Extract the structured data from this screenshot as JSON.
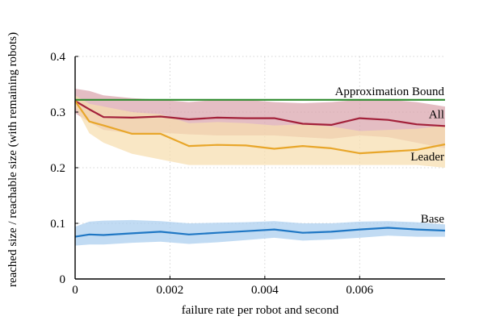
{
  "chart_data": {
    "type": "line",
    "xlabel": "failure rate per robot and second",
    "ylabel": "reached size / reachable size (with remaining robots)",
    "xlim": [
      0,
      0.0078
    ],
    "ylim": [
      0,
      0.4
    ],
    "grid": true,
    "x_ticks": [
      0,
      0.002,
      0.004,
      0.006
    ],
    "x_tick_labels": [
      "0",
      "0.002",
      "0.004",
      "0.006"
    ],
    "y_ticks": [
      0,
      0.1,
      0.2,
      0.3,
      0.4
    ],
    "y_tick_labels": [
      "0",
      "0.1",
      "0.2",
      "0.3",
      "0.4"
    ],
    "series": [
      {
        "name": "Approximation Bound",
        "color": "#2e8b2e",
        "x": [
          0,
          0.0078
        ],
        "values": [
          0.322,
          0.322
        ]
      },
      {
        "name": "All",
        "color": "#a3213a",
        "band_color": "#d9a3ac",
        "x": [
          0,
          0.0003,
          0.0006,
          0.0012,
          0.0018,
          0.0024,
          0.003,
          0.0036,
          0.0042,
          0.0048,
          0.0054,
          0.006,
          0.0066,
          0.0072,
          0.0078
        ],
        "values": [
          0.32,
          0.305,
          0.291,
          0.29,
          0.292,
          0.287,
          0.29,
          0.289,
          0.289,
          0.279,
          0.277,
          0.289,
          0.286,
          0.278,
          0.275
        ],
        "upper": [
          0.342,
          0.338,
          0.33,
          0.325,
          0.322,
          0.318,
          0.322,
          0.322,
          0.318,
          0.316,
          0.318,
          0.322,
          0.322,
          0.318,
          0.31
        ],
        "lower": [
          0.298,
          0.282,
          0.268,
          0.262,
          0.263,
          0.26,
          0.258,
          0.258,
          0.258,
          0.255,
          0.252,
          0.258,
          0.255,
          0.245,
          0.235
        ]
      },
      {
        "name": "Leader",
        "color": "#e8a62a",
        "band_color": "#f6deae",
        "x": [
          0,
          0.0003,
          0.0006,
          0.0012,
          0.0018,
          0.0024,
          0.003,
          0.0036,
          0.0042,
          0.0048,
          0.0054,
          0.006,
          0.0066,
          0.0072,
          0.0078
        ],
        "values": [
          0.32,
          0.283,
          0.276,
          0.261,
          0.261,
          0.239,
          0.241,
          0.24,
          0.234,
          0.239,
          0.235,
          0.226,
          0.229,
          0.232,
          0.242
        ],
        "upper": [
          0.33,
          0.315,
          0.31,
          0.3,
          0.296,
          0.28,
          0.282,
          0.28,
          0.276,
          0.278,
          0.274,
          0.266,
          0.268,
          0.27,
          0.276
        ],
        "lower": [
          0.31,
          0.262,
          0.245,
          0.225,
          0.215,
          0.205,
          0.205,
          0.205,
          0.205,
          0.205,
          0.205,
          0.205,
          0.205,
          0.205,
          0.2
        ]
      },
      {
        "name": "Base",
        "color": "#1f77c4",
        "band_color": "#a9cdee",
        "x": [
          0,
          0.0003,
          0.0006,
          0.0012,
          0.0018,
          0.0024,
          0.003,
          0.0036,
          0.0042,
          0.0048,
          0.0054,
          0.006,
          0.0066,
          0.0072,
          0.0078
        ],
        "values": [
          0.076,
          0.08,
          0.079,
          0.082,
          0.085,
          0.08,
          0.083,
          0.086,
          0.089,
          0.083,
          0.085,
          0.089,
          0.092,
          0.089,
          0.087
        ],
        "upper": [
          0.094,
          0.103,
          0.105,
          0.106,
          0.104,
          0.1,
          0.101,
          0.102,
          0.104,
          0.1,
          0.1,
          0.103,
          0.104,
          0.102,
          0.098
        ],
        "lower": [
          0.06,
          0.062,
          0.062,
          0.065,
          0.067,
          0.063,
          0.066,
          0.07,
          0.074,
          0.069,
          0.071,
          0.074,
          0.078,
          0.076,
          0.076
        ]
      }
    ]
  }
}
